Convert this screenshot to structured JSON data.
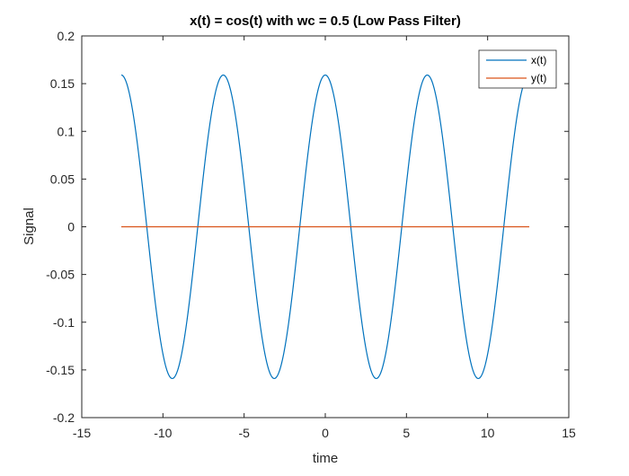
{
  "chart_data": {
    "type": "line",
    "title": "x(t) = cos(t) with wc = 0.5 (Low Pass Filter)",
    "xlabel": "time",
    "ylabel": "Signal",
    "xlim": [
      -15,
      15
    ],
    "ylim": [
      -0.2,
      0.2
    ],
    "xticks": [
      -15,
      -10,
      -5,
      0,
      5,
      10,
      15
    ],
    "xtick_labels": [
      "-15",
      "-10",
      "-5",
      "0",
      "5",
      "10",
      "15"
    ],
    "yticks": [
      -0.2,
      -0.15,
      -0.1,
      -0.05,
      0,
      0.05,
      0.1,
      0.15,
      0.2
    ],
    "ytick_labels": [
      "-0.2",
      "-0.15",
      "-0.1",
      "-0.05",
      "0",
      "0.05",
      "0.1",
      "0.15",
      "0.2"
    ],
    "grid": false,
    "legend_position": "top-right",
    "x_range": [
      -12.566,
      12.566
    ],
    "series": [
      {
        "name": "x(t)",
        "color": "#0072BD",
        "form": "cosine",
        "amplitude": 0.159,
        "frequency": 1
      },
      {
        "name": "y(t)",
        "color": "#D95319",
        "form": "constant",
        "value": 0
      }
    ]
  }
}
